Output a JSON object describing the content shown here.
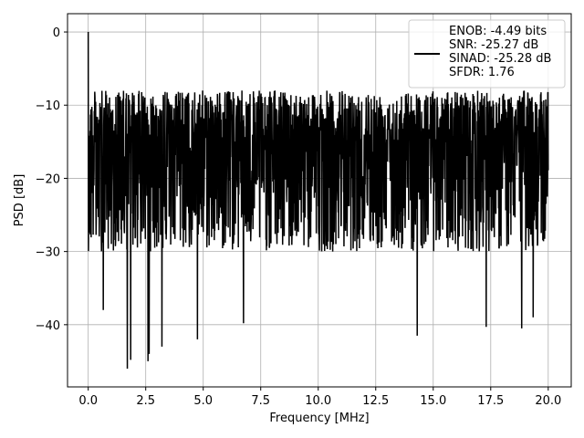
{
  "chart_data": {
    "type": "line",
    "xlabel": "Frequency [MHz]",
    "ylabel": "PSD [dB]",
    "xlim": [
      -0.9,
      21.0
    ],
    "ylim": [
      -48.5,
      2.5
    ],
    "xticks": [
      0.0,
      2.5,
      5.0,
      7.5,
      10.0,
      12.5,
      15.0,
      17.5,
      20.0
    ],
    "xtick_labels": [
      "0.0",
      "2.5",
      "5.0",
      "7.5",
      "10.0",
      "12.5",
      "15.0",
      "17.5",
      "20.0"
    ],
    "yticks": [
      0,
      -10,
      -20,
      -30,
      -40
    ],
    "ytick_labels": [
      "0",
      "−10",
      "−20",
      "−30",
      "−40"
    ],
    "grid": true,
    "legend_position": "top-right",
    "series": [
      {
        "name": "ENOB: -4.49 bits",
        "color": "#000000",
        "x_range": [
          0,
          20
        ],
        "baseline_db": -15,
        "upper_envelope_db": -8,
        "lower_envelope_db": -30,
        "spikes": [
          {
            "x": 0.0,
            "y": 0.0
          },
          {
            "x": 0.65,
            "y": -38.0
          },
          {
            "x": 1.7,
            "y": -46.0
          },
          {
            "x": 1.85,
            "y": -44.8
          },
          {
            "x": 2.65,
            "y": -44.0
          },
          {
            "x": 2.6,
            "y": -45.0
          },
          {
            "x": 3.2,
            "y": -43.0
          },
          {
            "x": 4.75,
            "y": -42.0
          },
          {
            "x": 6.75,
            "y": -39.8
          },
          {
            "x": 14.3,
            "y": -41.5
          },
          {
            "x": 17.3,
            "y": -40.3
          },
          {
            "x": 18.85,
            "y": -40.5
          },
          {
            "x": 19.35,
            "y": -39.0
          }
        ]
      }
    ],
    "legend_lines": [
      "ENOB: -4.49 bits",
      "SNR: -25.27 dB",
      "SINAD: -25.28 dB",
      "SFDR: 1.76"
    ]
  }
}
